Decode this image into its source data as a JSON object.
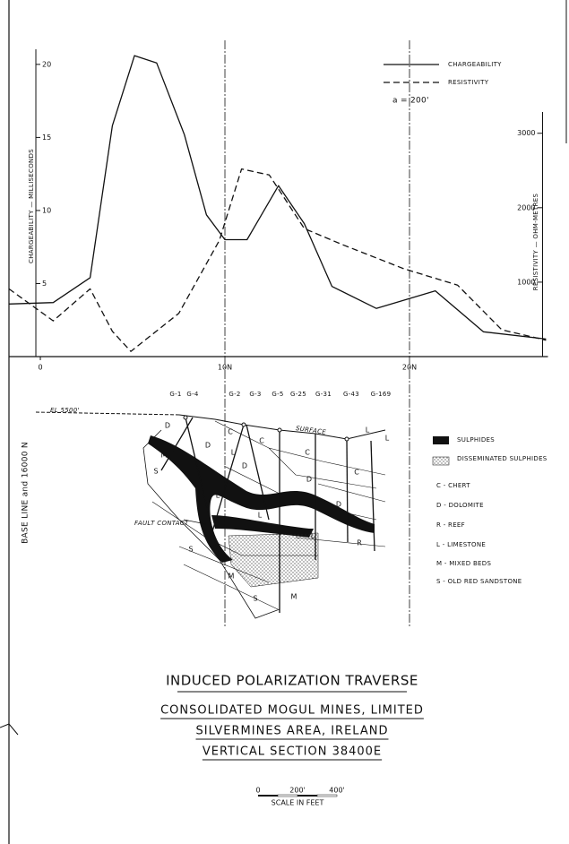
{
  "chart_data": {
    "type": "line",
    "ylabel": "CHARGEABILITY — MILLISECONDS",
    "y2label": "RESISTIVITY — OHM-METRES",
    "annotation": "a = 200'",
    "xlim": [
      -1.7,
      27.5
    ],
    "xticks": [
      0,
      {
        "value": 10,
        "label": "10N"
      },
      {
        "value": 20,
        "label": "20N"
      }
    ],
    "ylim": [
      0,
      24.1
    ],
    "yticks": [
      5,
      10,
      15,
      20
    ],
    "y2lim": [
      0,
      4730
    ],
    "y2ticks": [
      1000,
      2000,
      3000
    ],
    "grid": true,
    "legend": "top-right",
    "series": [
      {
        "name": "CHARGEABILITY",
        "color": "#111111",
        "style": "solid",
        "x": [
          -1.7,
          0.7,
          2.7,
          3.9,
          5.1,
          6.3,
          7.8,
          9.0,
          10.0,
          11.2,
          12.9,
          14.3,
          15.8,
          18.2,
          21.4,
          24.0,
          27.4
        ],
        "values": [
          3.6,
          3.7,
          5.4,
          15.8,
          20.6,
          20.1,
          15.2,
          9.7,
          8.0,
          8.0,
          11.7,
          9.1,
          4.8,
          3.3,
          4.5,
          1.7,
          1.2
        ]
      },
      {
        "name": "RESISTIVITY",
        "color": "#111111",
        "style": "dashed",
        "axis": "y2",
        "x": [
          -1.7,
          0.7,
          2.7,
          3.9,
          4.9,
          7.5,
          9.7,
          10.9,
          12.4,
          14.3,
          16.3,
          19.7,
          22.6,
          25.0,
          27.4
        ],
        "values": [
          910,
          480,
          910,
          340,
          70,
          580,
          1560,
          2520,
          2440,
          1720,
          1510,
          1180,
          960,
          360,
          220
        ]
      }
    ]
  },
  "section": {
    "drill_holes": [
      "G-1",
      "G-4",
      "G-2",
      "G-3",
      "G-5",
      "G-25",
      "G-31",
      "G-43",
      "G-169"
    ],
    "elevation": "EL 5500'",
    "baseline": "BASE LINE and 16000 N",
    "surface": "SURFACE",
    "fault": "FAULT CONTACT",
    "formation_labels": [
      "D",
      "D",
      "C",
      "C",
      "C",
      "L",
      "L",
      "D",
      "C",
      "D",
      "L",
      "L",
      "L",
      "R",
      "M",
      "S",
      "S",
      "M",
      "S",
      "M",
      "L",
      "D"
    ],
    "legend": [
      "SULPHIDES",
      "DISSEMINATED SULPHIDES",
      "C - CHERT",
      "D - DOLOMITE",
      "R - REEF",
      "L - LIMESTONE",
      "M - MIXED BEDS",
      "S - OLD RED SANDSTONE"
    ]
  },
  "title_block": {
    "title": "INDUCED POLARIZATION TRAVERSE",
    "lines": [
      "CONSOLIDATED MOGUL MINES, LIMITED",
      "SILVERMINES AREA, IRELAND",
      "VERTICAL SECTION 38400E"
    ],
    "scale_ticks": [
      "0",
      "200'",
      "400'"
    ],
    "scale_label": "SCALE IN FEET"
  }
}
